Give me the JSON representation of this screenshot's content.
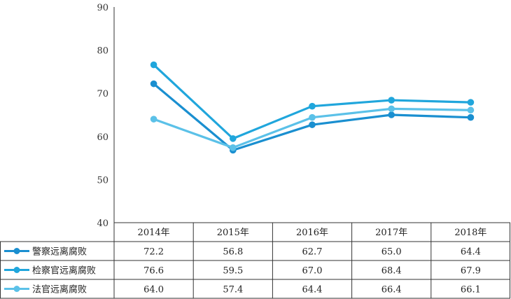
{
  "chart_data": {
    "type": "line",
    "title": "",
    "xlabel": "",
    "ylabel": "",
    "ylim": [
      40,
      90
    ],
    "yticks": [
      40,
      50,
      60,
      70,
      80,
      90
    ],
    "categories": [
      "2014年",
      "2015年",
      "2016年",
      "2017年",
      "2018年"
    ],
    "grid": false,
    "legend": "table-left",
    "series": [
      {
        "name": "警察远离腐败",
        "values": [
          72.2,
          56.8,
          62.7,
          65.0,
          64.4
        ],
        "labels": [
          "72.2",
          "56.8",
          "62.7",
          "65.0",
          "64.4"
        ],
        "color": "#1a8fd0"
      },
      {
        "name": "检察官远离腐败",
        "values": [
          76.6,
          59.5,
          67.0,
          68.4,
          67.9
        ],
        "labels": [
          "76.6",
          "59.5",
          "67.0",
          "68.4",
          "67.9"
        ],
        "color": "#20a6dc"
      },
      {
        "name": "法官远离腐败",
        "values": [
          64.0,
          57.4,
          64.4,
          66.4,
          66.1
        ],
        "labels": [
          "64.0",
          "57.4",
          "64.4",
          "66.4",
          "66.1"
        ],
        "color": "#5bc1e8"
      }
    ]
  }
}
